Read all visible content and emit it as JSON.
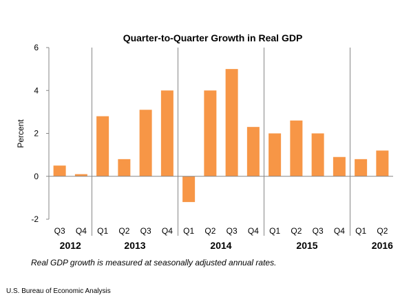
{
  "chart_data": {
    "type": "bar",
    "title": "Quarter-to-Quarter Growth in Real GDP",
    "xlabel": "",
    "ylabel": "Percent",
    "ylim": [
      -2,
      6
    ],
    "yticks": [
      "6",
      "4",
      "2",
      "0",
      "-2"
    ],
    "categories": [
      "Q3",
      "Q4",
      "Q1",
      "Q2",
      "Q3",
      "Q4",
      "Q1",
      "Q2",
      "Q3",
      "Q4",
      "Q1",
      "Q2",
      "Q3",
      "Q4",
      "Q1",
      "Q2"
    ],
    "values": [
      0.5,
      0.1,
      2.8,
      0.8,
      3.1,
      4.0,
      -1.2,
      4.0,
      5.0,
      2.3,
      2.0,
      2.6,
      2.0,
      0.9,
      0.8,
      1.2
    ],
    "years": [
      "2012",
      "2013",
      "2014",
      "2015",
      "2016"
    ],
    "bar_color": "#F79646",
    "grid": false
  },
  "footnote": "Real GDP growth is measured at seasonally adjusted annual rates.",
  "source": "U.S. Bureau of Economic Analysis"
}
